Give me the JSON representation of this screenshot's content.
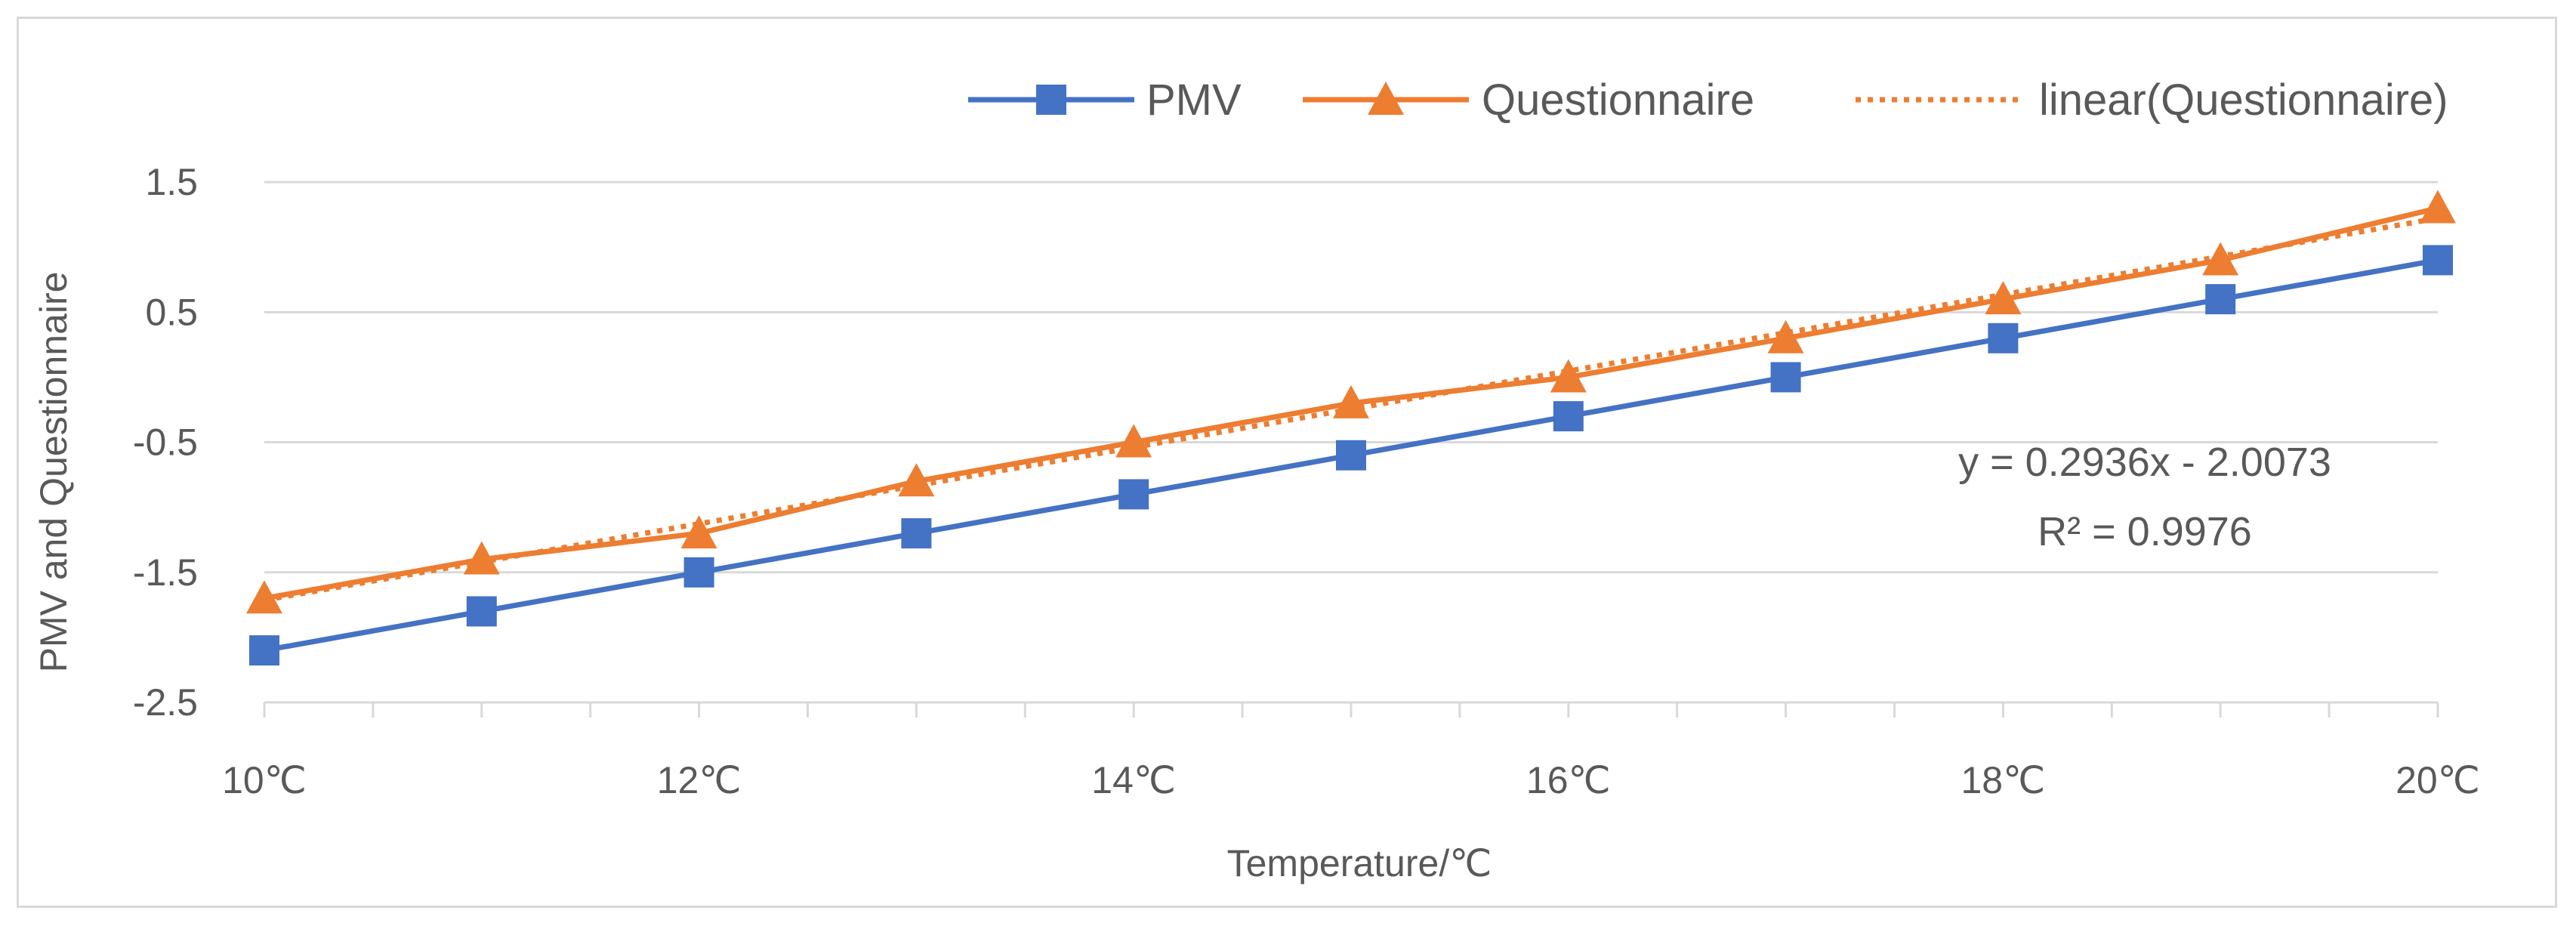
{
  "chart_data": {
    "type": "line",
    "title": "",
    "xlabel": "Temperature/℃",
    "ylabel": "PMV and Questionnaire",
    "categories": [
      "10℃",
      "11℃",
      "12℃",
      "13℃",
      "14℃",
      "15℃",
      "16℃",
      "17℃",
      "18℃",
      "19℃",
      "20℃"
    ],
    "x_tick_labels": [
      "10℃",
      "12℃",
      "14℃",
      "16℃",
      "18℃",
      "20℃"
    ],
    "y_ticks": [
      1.5,
      0.5,
      -0.5,
      -1.5,
      -2.5
    ],
    "y_tick_labels": [
      "1.5",
      "0.5",
      "-0.5",
      "-1.5",
      "-2.5"
    ],
    "ylim": [
      -2.5,
      2.0
    ],
    "grid": true,
    "legend_position": "top-right",
    "series": [
      {
        "name": "PMV",
        "marker": "square",
        "color": "#4472C4",
        "values": [
          -2.1,
          -1.8,
          -1.5,
          -1.2,
          -0.9,
          -0.6,
          -0.3,
          0.0,
          0.3,
          0.6,
          0.9
        ]
      },
      {
        "name": "Questionnaire",
        "marker": "triangle",
        "color": "#ED7D31",
        "values": [
          -1.7,
          -1.4,
          -1.2,
          -0.8,
          -0.5,
          -0.2,
          0.0,
          0.3,
          0.6,
          0.9,
          1.3
        ]
      },
      {
        "name": "linear(Questionnaire)",
        "marker": "none",
        "style": "dotted",
        "color": "#ED7D31",
        "slope": 0.2936,
        "intercept": -2.0073
      }
    ],
    "annotations": {
      "equation": "y = 0.2936x - 2.0073",
      "r_squared": "R² = 0.9976"
    }
  }
}
